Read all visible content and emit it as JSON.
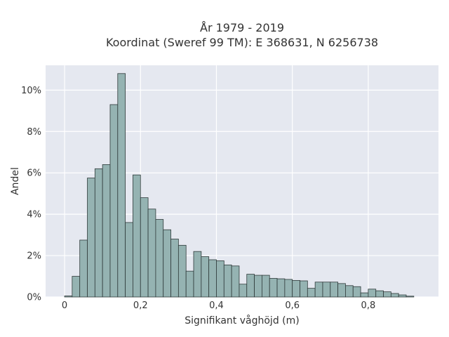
{
  "chart_data": {
    "type": "bar",
    "title_line1": "År 1979 - 2019",
    "title_line2": "Koordinat (Sweref 99 TM): E 368631, N 6256738",
    "xlabel": "Signifikant våghöjd (m)",
    "ylabel": "Andel",
    "xlim": [
      -0.05,
      0.985
    ],
    "ylim": [
      0,
      11.2
    ],
    "bin_width": 0.02,
    "x_ticks": [
      0,
      0.2,
      0.4,
      0.6,
      0.8
    ],
    "x_tick_labels": [
      "0",
      "0,2",
      "0,4",
      "0,6",
      "0,8"
    ],
    "y_ticks": [
      0,
      2,
      4,
      6,
      8,
      10
    ],
    "y_tick_labels": [
      "0%",
      "2%",
      "4%",
      "6%",
      "8%",
      "10%"
    ],
    "grid": true,
    "bin_starts": [
      0.0,
      0.02,
      0.04,
      0.06,
      0.08,
      0.1,
      0.12,
      0.14,
      0.16,
      0.18,
      0.2,
      0.22,
      0.24,
      0.26,
      0.28,
      0.3,
      0.32,
      0.34,
      0.36,
      0.38,
      0.4,
      0.42,
      0.44,
      0.46,
      0.48,
      0.5,
      0.52,
      0.54,
      0.56,
      0.58,
      0.6,
      0.62,
      0.64,
      0.66,
      0.68,
      0.7,
      0.72,
      0.74,
      0.76,
      0.78,
      0.8,
      0.82,
      0.84,
      0.86,
      0.88,
      0.9
    ],
    "values": [
      0.05,
      1.0,
      2.75,
      5.75,
      6.2,
      6.4,
      9.3,
      10.8,
      3.6,
      5.9,
      4.8,
      4.25,
      3.75,
      3.25,
      2.8,
      2.5,
      1.25,
      2.2,
      1.95,
      1.8,
      1.75,
      1.55,
      1.5,
      0.62,
      1.1,
      1.05,
      1.05,
      0.9,
      0.88,
      0.85,
      0.8,
      0.78,
      0.42,
      0.72,
      0.72,
      0.72,
      0.65,
      0.55,
      0.5,
      0.2,
      0.38,
      0.3,
      0.25,
      0.17,
      0.1,
      0.04
    ]
  }
}
